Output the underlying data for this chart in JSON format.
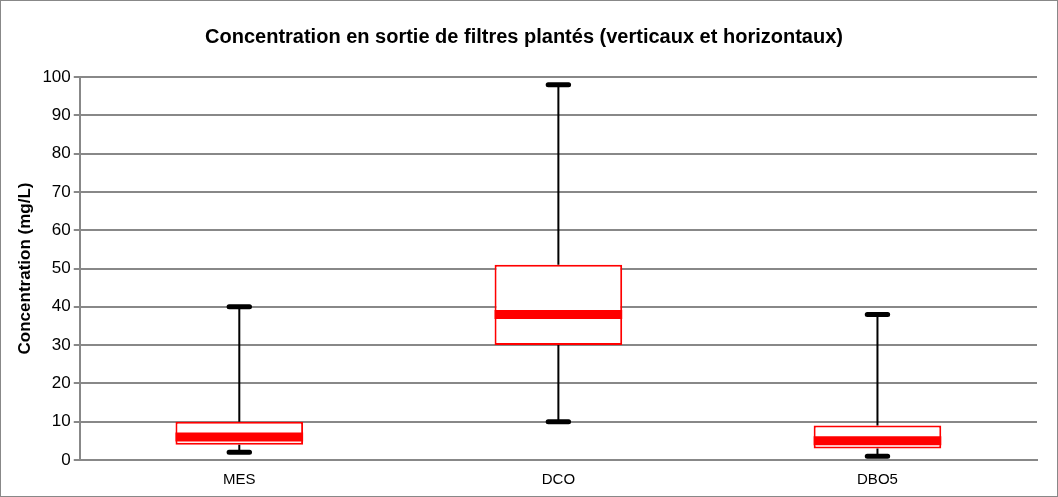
{
  "chart_data": {
    "type": "box",
    "title": "Concentration en sortie de filtres plantés (verticaux et horizontaux)",
    "ylabel": "Concentration (mg/L)",
    "categories": [
      "MES",
      "DCO",
      "DBO5"
    ],
    "boxes": [
      {
        "low": 2,
        "q1": 4,
        "median": 6,
        "q3": 10,
        "high": 40
      },
      {
        "low": 10,
        "q1": 30,
        "median": 38,
        "q3": 51,
        "high": 98
      },
      {
        "low": 1,
        "q1": 3,
        "median": 5,
        "q3": 9,
        "high": 38
      }
    ],
    "color": "#ff0000",
    "ylim": [
      0,
      100
    ],
    "yticks": [
      0,
      10,
      20,
      30,
      40,
      50,
      60,
      70,
      80,
      90,
      100
    ],
    "grid": "y",
    "legend": false
  }
}
